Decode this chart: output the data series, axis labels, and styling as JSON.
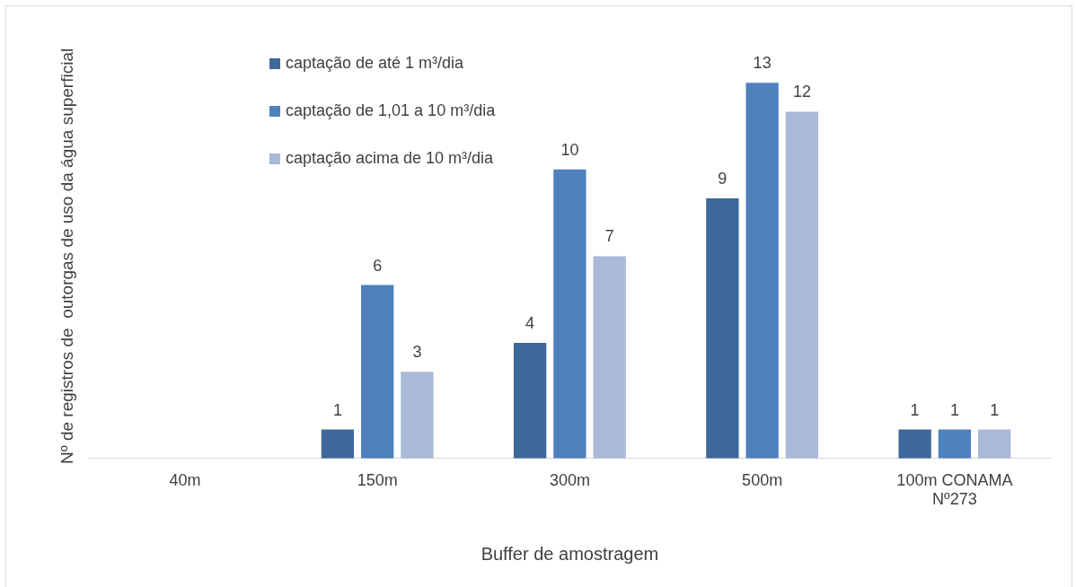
{
  "chart_data": {
    "type": "bar",
    "xlabel": "Buffer de amostragem",
    "ylabel": "Nº de registros de  outorgas de uso da água superficial",
    "categories": [
      "40m",
      "150m",
      "300m",
      "500m",
      "100m CONAMA Nº273"
    ],
    "series": [
      {
        "name": "captação de até 1 m³/dia",
        "color": "#3d6899",
        "values": [
          null,
          1,
          4,
          9,
          1
        ]
      },
      {
        "name": "captação de 1,01 a 10 m³/dia",
        "color": "#4f81bd",
        "values": [
          null,
          6,
          10,
          13,
          1
        ]
      },
      {
        "name": "captação acima de 10 m³/dia",
        "color": "#a9b9d7",
        "values": [
          null,
          3,
          7,
          12,
          1
        ]
      }
    ],
    "relative": false,
    "data_labels": true,
    "legend": "top left",
    "grid": false
  }
}
